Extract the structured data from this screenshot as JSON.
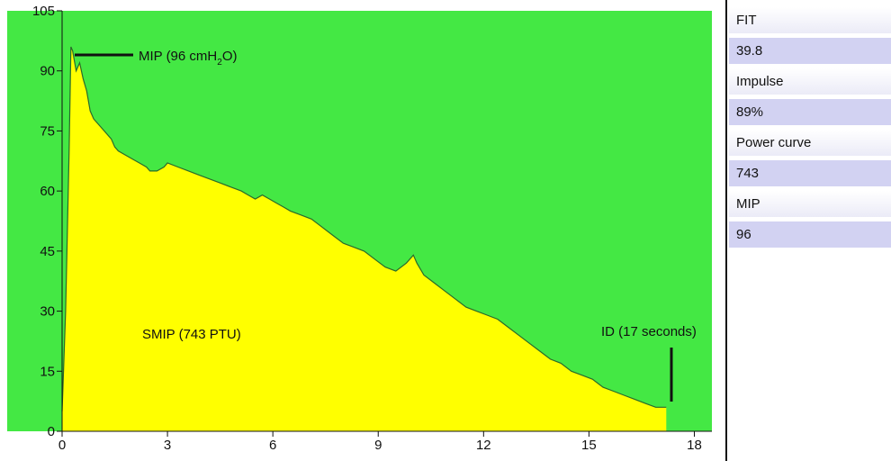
{
  "colors": {
    "plot_background": "#44e844",
    "fill": "#ffff00",
    "outline": "#2a6a2a",
    "panel_label_bg": "#ececf8",
    "panel_value_bg": "#d2d2f2"
  },
  "chart_data": {
    "type": "area",
    "title": "",
    "xlabel": "",
    "ylabel": "",
    "xlim": [
      0,
      18.5
    ],
    "ylim": [
      0,
      105
    ],
    "x_ticks": [
      0,
      3,
      6,
      9,
      12,
      15,
      18
    ],
    "y_ticks": [
      0,
      15,
      30,
      45,
      60,
      75,
      90,
      105
    ],
    "grid": false,
    "series": [
      {
        "x": [
          0,
          0.1,
          0.2,
          0.25,
          0.3,
          0.4,
          0.5,
          0.6,
          0.7,
          0.8,
          0.9,
          1.0,
          1.2,
          1.4,
          1.5,
          1.6,
          1.8,
          2.0,
          2.2,
          2.4,
          2.5,
          2.7,
          2.9,
          3.0,
          3.3,
          3.6,
          3.9,
          4.2,
          4.5,
          4.8,
          5.1,
          5.3,
          5.5,
          5.7,
          5.9,
          6.1,
          6.3,
          6.5,
          6.8,
          7.1,
          7.4,
          7.7,
          8.0,
          8.3,
          8.6,
          8.9,
          9.2,
          9.5,
          9.8,
          10.0,
          10.1,
          10.3,
          10.6,
          10.9,
          11.2,
          11.5,
          11.8,
          12.1,
          12.4,
          12.7,
          13.0,
          13.3,
          13.6,
          13.9,
          14.2,
          14.5,
          14.8,
          15.1,
          15.4,
          15.7,
          16.0,
          16.3,
          16.6,
          16.9,
          17.2
        ],
        "y": [
          5,
          30,
          70,
          96,
          95,
          90,
          92,
          88,
          85,
          80,
          78,
          77,
          75,
          73,
          71,
          70,
          69,
          68,
          67,
          66,
          65,
          65,
          66,
          67,
          66,
          65,
          64,
          63,
          62,
          61,
          60,
          59,
          58,
          59,
          58,
          57,
          56,
          55,
          54,
          53,
          51,
          49,
          47,
          46,
          45,
          43,
          41,
          40,
          42,
          44,
          42,
          39,
          37,
          35,
          33,
          31,
          30,
          29,
          28,
          26,
          24,
          22,
          20,
          18,
          17,
          15,
          14,
          13,
          11,
          10,
          9,
          8,
          7,
          6,
          6
        ]
      }
    ],
    "annotations": {
      "mip_prefix": "MIP (96 cmH",
      "mip_sub": "2",
      "mip_suffix": "O)",
      "smip": "SMIP (743 PTU)",
      "id": "ID (17 seconds)"
    }
  },
  "panel": {
    "rows": [
      {
        "kind": "label",
        "text": "FIT"
      },
      {
        "kind": "value",
        "text": "39.8"
      },
      {
        "kind": "label",
        "text": "Impulse"
      },
      {
        "kind": "value",
        "text": "89%"
      },
      {
        "kind": "label",
        "text": "Power curve"
      },
      {
        "kind": "value",
        "text": "743"
      },
      {
        "kind": "label",
        "text": "MIP"
      },
      {
        "kind": "value",
        "text": "96"
      }
    ]
  }
}
